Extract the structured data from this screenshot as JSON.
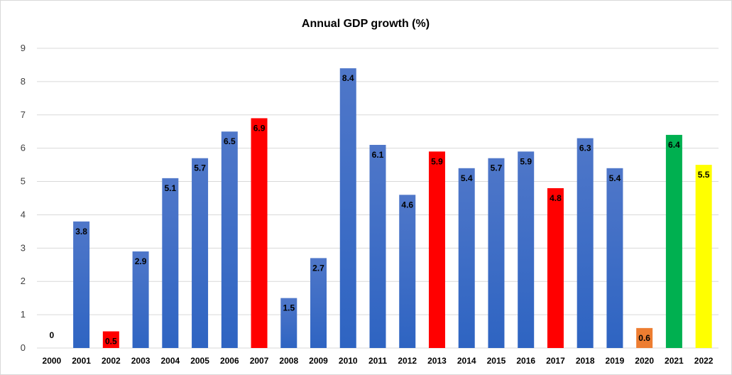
{
  "chart_data": {
    "type": "bar",
    "title": "Annual GDP growth (%)",
    "categories": [
      "2000",
      "2001",
      "2002",
      "2003",
      "2004",
      "2005",
      "2006",
      "2007",
      "2008",
      "2009",
      "2010",
      "2011",
      "2012",
      "2013",
      "2014",
      "2015",
      "2016",
      "2017",
      "2018",
      "2019",
      "2020",
      "2021",
      "2022"
    ],
    "values": [
      0,
      3.8,
      0.5,
      2.9,
      5.1,
      5.7,
      6.5,
      6.9,
      1.5,
      2.7,
      8.4,
      6.1,
      4.6,
      5.9,
      5.4,
      5.7,
      5.9,
      4.8,
      6.3,
      5.4,
      0.6,
      6.4,
      5.5
    ],
    "data_labels": [
      "0",
      "3.8",
      "0.5",
      "2.9",
      "5.1",
      "5.7",
      "6.5",
      "6.9",
      "1.5",
      "2.7",
      "8.4",
      "6.1",
      "4.6",
      "5.9",
      "5.4",
      "5.7",
      "5.9",
      "4.8",
      "6.3",
      "5.4",
      "0.6",
      "6.4",
      "5.5"
    ],
    "bar_colors": [
      "#4472c4",
      "#4472c4",
      "#ff0000",
      "#4472c4",
      "#4472c4",
      "#4472c4",
      "#4472c4",
      "#ff0000",
      "#4472c4",
      "#4472c4",
      "#4472c4",
      "#4472c4",
      "#4472c4",
      "#ff0000",
      "#4472c4",
      "#4472c4",
      "#4472c4",
      "#ff0000",
      "#4472c4",
      "#4472c4",
      "#ed7d31",
      "#00b050",
      "#ffff00"
    ],
    "yticks": [
      "0",
      "1",
      "2",
      "3",
      "4",
      "5",
      "6",
      "7",
      "8",
      "9"
    ],
    "ylim": [
      0,
      9
    ],
    "xlabel": "",
    "ylabel": "",
    "grid": true,
    "legend": "none"
  }
}
